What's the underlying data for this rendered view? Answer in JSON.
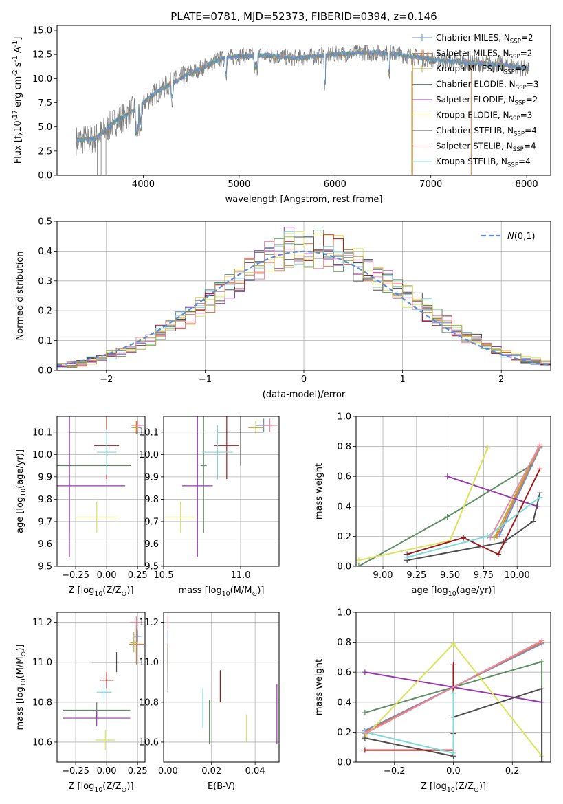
{
  "figure": {
    "title": "PLATE=0781, MJD=52373, FIBERID=0394, z=0.146"
  },
  "series_colors": [
    "#6a8edb",
    "#e07b3a",
    "#b5b040",
    "#5e8f62",
    "#9a35b0",
    "#d9e45a",
    "#4d4d4d",
    "#a01818",
    "#7fd8da",
    "#e98aa8"
  ],
  "chart_data": [
    {
      "id": "spectrum",
      "type": "line",
      "xlabel": "wavelength [Angstrom, rest frame]",
      "ylabel": "Flux [f$_\\lambda$10$^{-17}$ erg cm$^{-2}$ s$^{-1}$ A$^{-1}$]",
      "xlim": [
        3100,
        8250
      ],
      "ylim": [
        0,
        15.5
      ],
      "xticks": [
        4000,
        5000,
        6000,
        7000,
        8000
      ],
      "yticks": [
        0.0,
        2.5,
        5.0,
        7.5,
        10.0,
        12.5,
        15.0
      ],
      "legend_placement": "top-right",
      "legend": [
        "Chabrier MILES, N$_{SSP}$=2",
        "Salpeter MILES, N$_{SSP}$=2",
        "Kroupa MILES, N$_{SSP}$=2",
        "Chabrier ELODIE, N$_{SSP}$=3",
        "Salpeter ELODIE, N$_{SSP}$=2",
        "Kroupa ELODIE, N$_{SSP}$=3",
        "Chabrier STELIB, N$_{SSP}$=4",
        "Salpeter STELIB, N$_{SSP}$=4",
        "Kroupa STELIB, N$_{SSP}$=4"
      ],
      "data_envelope": {
        "x": [
          3300,
          3500,
          3700,
          3900,
          4000,
          4200,
          4500,
          4800,
          5000,
          5300,
          5600,
          6000,
          6300,
          6600,
          7000,
          7400,
          7800,
          8000
        ],
        "y": [
          3.6,
          3.8,
          5.5,
          6.7,
          7.5,
          9.0,
          10.6,
          12.0,
          12.3,
          12.4,
          12.1,
          12.5,
          12.7,
          12.6,
          12.0,
          11.6,
          11.4,
          11.0
        ]
      }
    },
    {
      "id": "residuals",
      "type": "histogram",
      "xlabel": "(data-model)/error",
      "ylabel": "Normed distribution",
      "xlim": [
        -2.5,
        2.5
      ],
      "ylim": [
        0,
        0.5
      ],
      "xticks": [
        -2,
        -1,
        0,
        1,
        2
      ],
      "yticks": [
        0.0,
        0.1,
        0.2,
        0.3,
        0.4,
        0.5
      ],
      "grid": true,
      "legend_placement": "top-right",
      "legend": [
        "$\\mathcal{N}(0,1)$"
      ],
      "bin_width": 0.1
    },
    {
      "id": "age-vs-Z",
      "type": "errorbar",
      "xlabel": "Z [log$_{10}$(Z/Z$_\\odot$)]",
      "ylabel": "age  [log$_{10}$(age/yr)]",
      "xlim": [
        -0.4,
        0.31
      ],
      "ylim": [
        9.5,
        10.17
      ],
      "xticks": [
        -0.25,
        0.0,
        0.25
      ],
      "yticks": [
        9.5,
        9.6,
        9.7,
        9.8,
        9.9,
        10.0,
        10.1
      ],
      "grid": true,
      "points": [
        {
          "series": 0,
          "x": 0.25,
          "y": 10.12,
          "xerr": 0.03,
          "yerr": 0.03
        },
        {
          "series": 1,
          "x": 0.24,
          "y": 10.12,
          "xerr": 0.03,
          "yerr": 0.03
        },
        {
          "series": 2,
          "x": 0.23,
          "y": 10.12,
          "xerr": 0.03,
          "yerr": 0.03
        },
        {
          "series": 3,
          "x": -0.3,
          "y": 9.95,
          "xerr": 0.5,
          "yerr": 0.3
        },
        {
          "series": 4,
          "x": -0.3,
          "y": 9.86,
          "xerr": 0.45,
          "yerr": 0.32
        },
        {
          "series": 5,
          "x": -0.08,
          "y": 9.72,
          "xerr": 0.17,
          "yerr": 0.07
        },
        {
          "series": 6,
          "x": 0.0,
          "y": 10.1,
          "xerr": 0.3,
          "yerr": 0.15
        },
        {
          "series": 7,
          "x": 0.0,
          "y": 10.04,
          "xerr": 0.1,
          "yerr": 0.15
        },
        {
          "series": 8,
          "x": 0.0,
          "y": 10.01,
          "xerr": 0.08,
          "yerr": 0.1
        },
        {
          "series": 9,
          "x": 0.25,
          "y": 10.13,
          "xerr": 0.05,
          "yerr": 0.03
        }
      ]
    },
    {
      "id": "age-vs-mass",
      "type": "errorbar",
      "xlabel": "mass [log$_{10}$(M/M$_\\odot$)]",
      "ylabel": "",
      "xlim": [
        10.5,
        11.25
      ],
      "ylim": [
        9.5,
        10.17
      ],
      "xticks": [
        10.5,
        11.0
      ],
      "yticks": [
        9.5,
        9.6,
        9.7,
        9.8,
        9.9,
        10.0,
        10.1
      ],
      "grid": true,
      "points": [
        {
          "series": 0,
          "x": 11.15,
          "y": 10.13,
          "xerr": 0.05,
          "yerr": 0.03
        },
        {
          "series": 1,
          "x": 11.1,
          "y": 10.12,
          "xerr": 0.05,
          "yerr": 0.03
        },
        {
          "series": 2,
          "x": 11.1,
          "y": 10.12,
          "xerr": 0.05,
          "yerr": 0.03
        },
        {
          "series": 3,
          "x": 10.76,
          "y": 9.95,
          "xerr": 0.02,
          "yerr": 0.3
        },
        {
          "series": 4,
          "x": 10.72,
          "y": 9.86,
          "xerr": 0.1,
          "yerr": 0.32
        },
        {
          "series": 5,
          "x": 10.61,
          "y": 9.72,
          "xerr": 0.1,
          "yerr": 0.07
        },
        {
          "series": 6,
          "x": 11.0,
          "y": 10.1,
          "xerr": 0.15,
          "yerr": 0.15
        },
        {
          "series": 7,
          "x": 10.91,
          "y": 10.04,
          "xerr": 0.08,
          "yerr": 0.15
        },
        {
          "series": 8,
          "x": 10.85,
          "y": 10.01,
          "xerr": 0.1,
          "yerr": 0.12
        },
        {
          "series": 9,
          "x": 11.19,
          "y": 10.13,
          "xerr": 0.05,
          "yerr": 0.03
        }
      ]
    },
    {
      "id": "weight-vs-age",
      "type": "line",
      "xlabel": "age  [log$_{10}$(age/yr)]",
      "ylabel": "mass weight",
      "xlim": [
        8.8,
        10.25
      ],
      "ylim": [
        0.0,
        1.0
      ],
      "xticks": [
        9.0,
        9.25,
        9.5,
        9.75,
        10.0
      ],
      "yticks": [
        0.0,
        0.2,
        0.4,
        0.6,
        0.8,
        1.0
      ],
      "grid": true,
      "series": [
        {
          "x": [
            9.87,
            10.17
          ],
          "y": [
            0.21,
            0.79
          ]
        },
        {
          "x": [
            9.85,
            10.17
          ],
          "y": [
            0.2,
            0.8
          ]
        },
        {
          "x": [
            9.83,
            10.17
          ],
          "y": [
            0.19,
            0.81
          ]
        },
        {
          "x": [
            8.82,
            9.48,
            10.1
          ],
          "y": [
            0.0,
            0.33,
            0.67
          ]
        },
        {
          "x": [
            9.48,
            10.15
          ],
          "y": [
            0.6,
            0.4
          ]
        },
        {
          "x": [
            8.82,
            9.5,
            9.78
          ],
          "y": [
            0.04,
            0.17,
            0.79
          ]
        },
        {
          "x": [
            9.18,
            9.9,
            10.12,
            10.17
          ],
          "y": [
            0.04,
            0.16,
            0.3,
            0.49
          ]
        },
        {
          "x": [
            9.18,
            9.6,
            9.86,
            10.17
          ],
          "y": [
            0.08,
            0.19,
            0.08,
            0.65
          ]
        },
        {
          "x": [
            9.18,
            9.78,
            10.17
          ],
          "y": [
            0.06,
            0.2,
            0.46
          ]
        },
        {
          "x": [
            9.8,
            10.17
          ],
          "y": [
            0.19,
            0.81
          ]
        }
      ]
    },
    {
      "id": "mass-vs-Z",
      "type": "errorbar",
      "xlabel": "Z [log$_{10}$(Z/Z$_\\odot$)]",
      "ylabel": "mass [log$_{10}$(M/M$_\\odot$)]",
      "xlim": [
        -0.4,
        0.31
      ],
      "ylim": [
        10.5,
        11.25
      ],
      "xticks": [
        -0.25,
        0.0,
        0.25
      ],
      "yticks": [
        10.6,
        10.8,
        11.0,
        11.2
      ],
      "grid": true,
      "points": [
        {
          "series": 0,
          "x": 0.25,
          "y": 11.13,
          "xerr": 0.03,
          "yerr": 0.03
        },
        {
          "series": 1,
          "x": 0.24,
          "y": 11.09,
          "xerr": 0.06,
          "yerr": 0.1
        },
        {
          "series": 2,
          "x": 0.22,
          "y": 11.1,
          "xerr": 0.03,
          "yerr": 0.05
        },
        {
          "series": 3,
          "x": -0.08,
          "y": 10.76,
          "xerr": 0.27,
          "yerr": 0.04
        },
        {
          "series": 4,
          "x": -0.08,
          "y": 10.72,
          "xerr": 0.27,
          "yerr": 0.04
        },
        {
          "series": 5,
          "x": -0.01,
          "y": 10.61,
          "xerr": 0.08,
          "yerr": 0.05
        },
        {
          "series": 6,
          "x": 0.08,
          "y": 11.0,
          "xerr": 0.2,
          "yerr": 0.05
        },
        {
          "series": 7,
          "x": 0.0,
          "y": 10.91,
          "xerr": 0.05,
          "yerr": 0.04
        },
        {
          "series": 8,
          "x": -0.02,
          "y": 10.85,
          "xerr": 0.06,
          "yerr": 0.04
        },
        {
          "series": 9,
          "x": 0.24,
          "y": 11.2,
          "xerr": 0.05,
          "yerr": 0.03
        }
      ]
    },
    {
      "id": "mass-vs-ebv",
      "type": "errorbar",
      "xlabel": "E(B-V)",
      "ylabel": "",
      "xlim": [
        -0.002,
        0.051
      ],
      "ylim": [
        10.5,
        11.25
      ],
      "xticks": [
        0.0,
        0.02,
        0.04
      ],
      "yticks": [
        10.6,
        10.8,
        11.0,
        11.2
      ],
      "grid": true,
      "points": [
        {
          "series": 0,
          "x": 0.0,
          "y": 11.13,
          "xerr": 0,
          "yerr": 0.03
        },
        {
          "series": 1,
          "x": 0.0,
          "y": 11.05,
          "xerr": 0,
          "yerr": 0.05
        },
        {
          "series": 2,
          "x": 0.0,
          "y": 11.0,
          "xerr": 0,
          "yerr": 0.05
        },
        {
          "series": 3,
          "x": 0.019,
          "y": 10.7,
          "xerr": 0,
          "yerr": 0.11
        },
        {
          "series": 4,
          "x": 0.05,
          "y": 10.74,
          "xerr": 0,
          "yerr": 0.15
        },
        {
          "series": 5,
          "x": 0.036,
          "y": 10.67,
          "xerr": 0,
          "yerr": 0.07
        },
        {
          "series": 6,
          "x": 0.0,
          "y": 10.97,
          "xerr": 0,
          "yerr": 0.12
        },
        {
          "series": 7,
          "x": 0.024,
          "y": 10.88,
          "xerr": 0,
          "yerr": 0.08
        },
        {
          "series": 8,
          "x": 0.016,
          "y": 10.77,
          "xerr": 0,
          "yerr": 0.1
        },
        {
          "series": 9,
          "x": 0.0,
          "y": 11.2,
          "xerr": 0,
          "yerr": 0.03
        }
      ]
    },
    {
      "id": "weight-vs-Z",
      "type": "line",
      "xlabel": "Z [log$_{10}$(Z/Z$_\\odot$)]",
      "ylabel": "mass weight",
      "xlim": [
        -0.33,
        0.33
      ],
      "ylim": [
        0.0,
        1.0
      ],
      "xticks": [
        -0.2,
        0.0,
        0.2
      ],
      "yticks": [
        0.0,
        0.2,
        0.4,
        0.6,
        0.8,
        1.0
      ],
      "grid": true,
      "series": [
        {
          "x": [
            -0.3,
            0.3
          ],
          "y": [
            0.21,
            0.79
          ]
        },
        {
          "x": [
            -0.3,
            0.3
          ],
          "y": [
            0.2,
            0.8
          ]
        },
        {
          "x": [
            -0.3,
            0.3
          ],
          "y": [
            0.19,
            0.81
          ]
        },
        {
          "x": [
            -0.3,
            0.3,
            0.3
          ],
          "y": [
            0.33,
            0.67,
            0.0
          ]
        },
        {
          "x": [
            -0.3,
            0.3
          ],
          "y": [
            0.6,
            0.4
          ]
        },
        {
          "x": [
            -0.3,
            0.0,
            0.3
          ],
          "y": [
            0.17,
            0.79,
            0.04
          ]
        },
        {
          "x": [
            -0.3,
            0.0,
            0.0,
            0.3,
            0.3
          ],
          "y": [
            0.16,
            0.04,
            0.3,
            0.49,
            0.0
          ]
        },
        {
          "x": [
            -0.3,
            0.0,
            0.0,
            0.0
          ],
          "y": [
            0.08,
            0.08,
            0.65,
            0.19
          ]
        },
        {
          "x": [
            -0.3,
            0.0,
            0.0
          ],
          "y": [
            0.2,
            0.06,
            0.46
          ]
        },
        {
          "x": [
            -0.3,
            0.3
          ],
          "y": [
            0.19,
            0.81
          ]
        }
      ]
    }
  ]
}
